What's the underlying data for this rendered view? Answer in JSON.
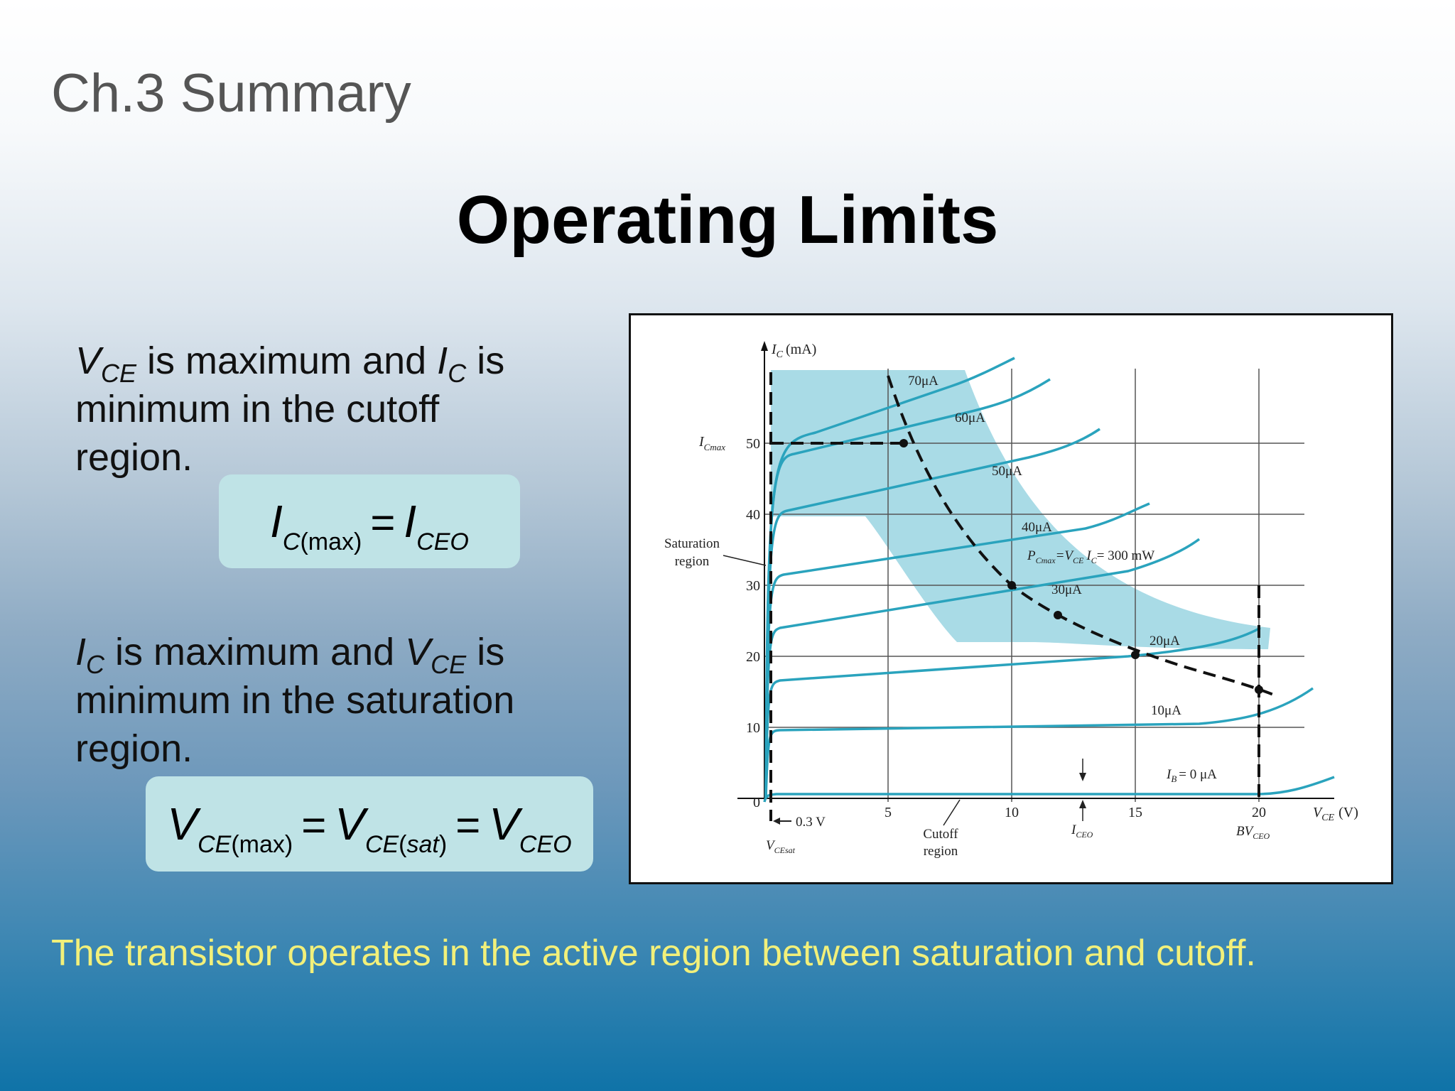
{
  "slide": {
    "header": "Ch.3 Summary",
    "title": "Operating Limits",
    "para1": {
      "v": "V",
      "ce": "CE",
      "text_a": " is maximum and ",
      "i": "I",
      "c": "C",
      "text_b": " is",
      "line2": "minimum in the cutoff",
      "line3": "region."
    },
    "eq1": {
      "lhs": "I",
      "lhs_sub": "C",
      "lhs_sub2": "(max)",
      "op": "=",
      "rhs": "I",
      "rhs_sub": "CEO"
    },
    "para2": {
      "i": "I",
      "c": "C",
      "text_a": " is maximum and ",
      "v": "V",
      "ce": "CE",
      "text_b": " is",
      "line2": "minimum in the saturation",
      "line3": "region."
    },
    "eq2": {
      "t1": "V",
      "t1_sub": "CE",
      "t1_sub2": "(max)",
      "op": "=",
      "t2": "V",
      "t2_sub": "CE",
      "t2_sub2": "(",
      "t2_sub3": "sat",
      "t2_sub4": ")",
      "t3": "V",
      "t3_sub": "CEO"
    },
    "footer": "The transistor operates in the active region between saturation and cutoff."
  },
  "figure": {
    "axis_y_label": "I",
    "axis_y_sub": "C",
    "axis_y_unit": "(mA)",
    "axis_x_label": "V",
    "axis_x_sub": "CE",
    "axis_x_unit": "(V)",
    "icmax_label": "I",
    "icmax_sub": "Cmax",
    "y_ticks": [
      "0",
      "10",
      "20",
      "30",
      "40",
      "50"
    ],
    "x_ticks": [
      "5",
      "10",
      "15",
      "20"
    ],
    "curve_labels": [
      "70μA",
      "60μA",
      "50μA",
      "40μA",
      "30μA",
      "20μA",
      "10μA"
    ],
    "ib0_label": "I",
    "ib0_sub": "B",
    "ib0_eq": "= 0 μA",
    "pc_label": "P",
    "pc_sub": "Cmax",
    "pc_eq": "=V",
    "pc_eq_sub": "CE",
    "pc_eq2": "I",
    "pc_eq2_sub": "C",
    "pc_val": "= 300 mW",
    "saturation_region": [
      "Saturation",
      "region"
    ],
    "cutoff_region": [
      "Cutoff",
      "region"
    ],
    "vsat_label": "0.3 V",
    "vcesat": "V",
    "vcesat_sub": "CEsat",
    "iceo": "I",
    "iceo_sub": "CEO",
    "bvceo": "BV",
    "bvceo_sub": "CEO",
    "colors": {
      "curve": "#2aa3bd",
      "fill": "#a9dbe6",
      "grid": "#555555",
      "dash": "#111111"
    }
  }
}
